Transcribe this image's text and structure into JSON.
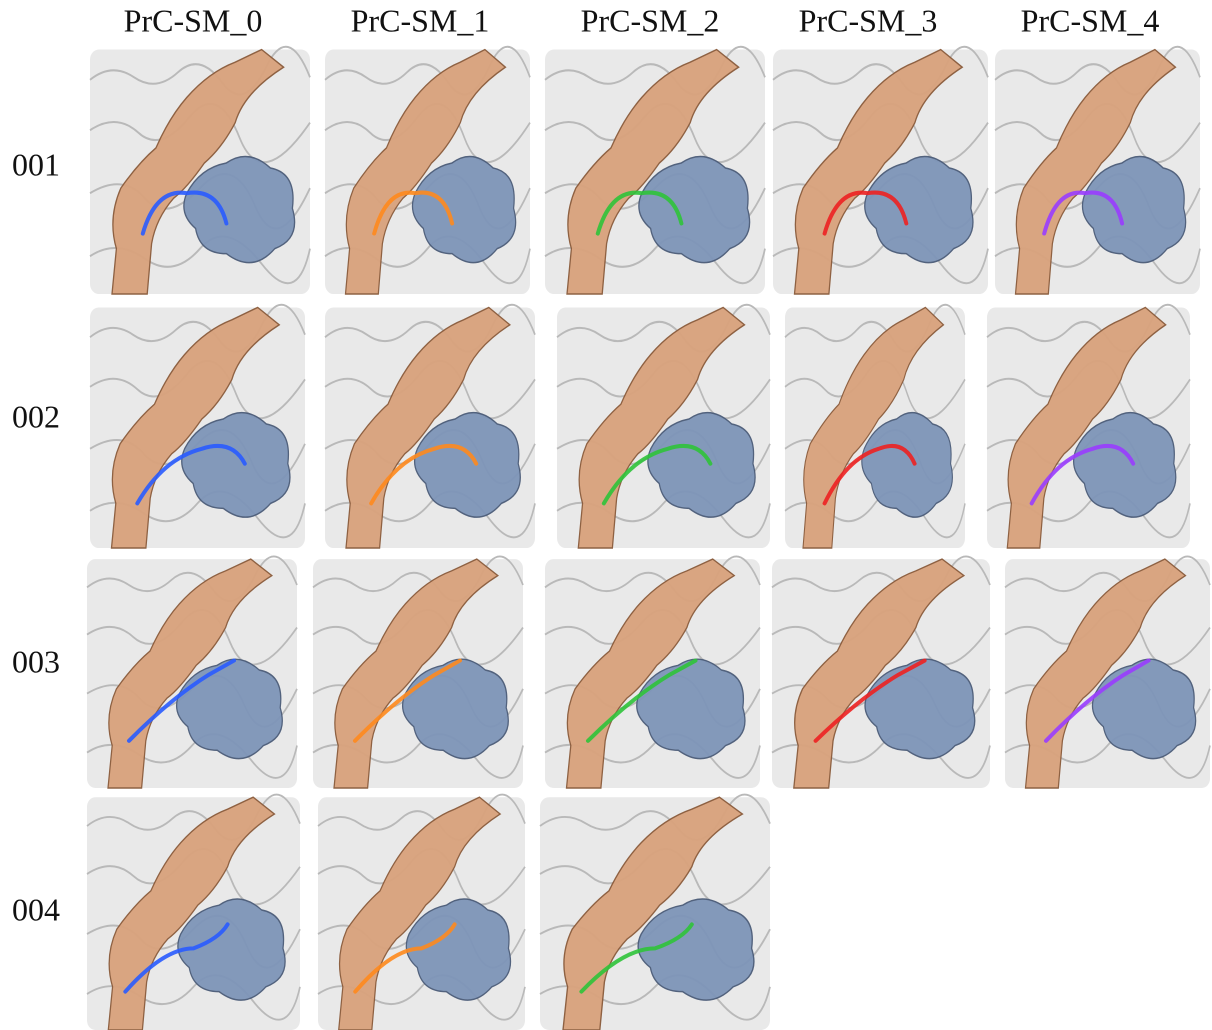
{
  "column_headers": [
    "PrC-SM_0",
    "PrC-SM_1",
    "PrC-SM_2",
    "PrC-SM_3",
    "PrC-SM_4"
  ],
  "row_labels": [
    "001",
    "002",
    "003",
    "004"
  ]
}
